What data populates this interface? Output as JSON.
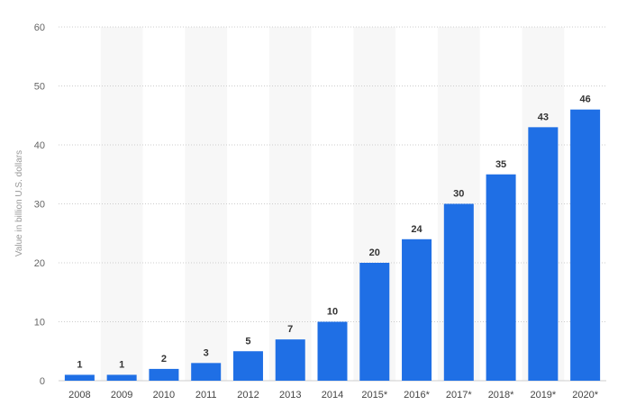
{
  "chart_data": {
    "type": "bar",
    "categories": [
      "2008",
      "2009",
      "2010",
      "2011",
      "2012",
      "2013",
      "2014",
      "2015*",
      "2016*",
      "2017*",
      "2018*",
      "2019*",
      "2020*"
    ],
    "values": [
      1,
      1,
      2,
      3,
      5,
      7,
      10,
      20,
      24,
      30,
      35,
      43,
      46
    ],
    "data_labels": [
      "1",
      "1",
      "2",
      "3",
      "5",
      "7",
      "10",
      "20",
      "24",
      "30",
      "35",
      "43",
      "46"
    ],
    "y_ticks": [
      "0",
      "10",
      "20",
      "30",
      "40",
      "50",
      "60"
    ],
    "ylabel": "Value in billion U.S. dollars",
    "ylim": [
      0,
      60
    ],
    "grid": true,
    "legend": "none",
    "bar_color": "#1f6fe5",
    "band_color": "#f7f7f7",
    "grid_color": "#cccccc"
  }
}
